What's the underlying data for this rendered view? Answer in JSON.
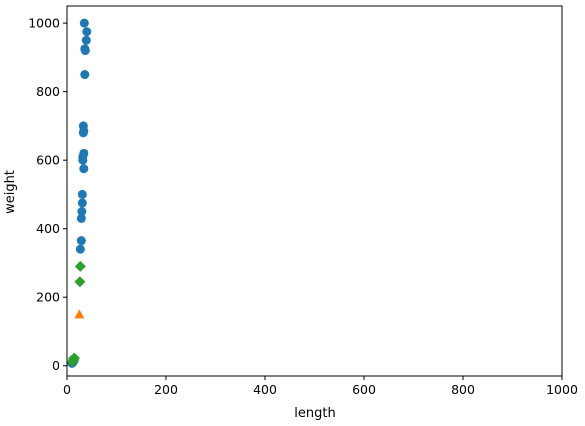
{
  "chart_data": {
    "type": "scatter",
    "title": "",
    "xlabel": "length",
    "ylabel": "weight",
    "xlim": [
      0,
      1000
    ],
    "ylim": [
      -30,
      1050
    ],
    "xticks": [
      0,
      200,
      400,
      600,
      800,
      1000
    ],
    "yticks": [
      0,
      200,
      400,
      600,
      800,
      1000
    ],
    "xtick_labels": [
      "0",
      "200",
      "400",
      "600",
      "800",
      "1000"
    ],
    "ytick_labels": [
      "0",
      "200",
      "400",
      "600",
      "800",
      "1000"
    ],
    "grid": false,
    "legend": "none",
    "series": [
      {
        "marker": "circle",
        "color": "#1f77b4",
        "points": [
          [
            35,
            1000
          ],
          [
            40,
            975
          ],
          [
            39,
            950
          ],
          [
            36,
            925
          ],
          [
            37,
            920
          ],
          [
            36,
            850
          ],
          [
            33,
            700
          ],
          [
            34,
            685
          ],
          [
            33,
            680
          ],
          [
            34,
            620
          ],
          [
            32,
            610
          ],
          [
            32,
            600
          ],
          [
            34,
            575
          ],
          [
            31,
            500
          ],
          [
            31,
            475
          ],
          [
            30,
            450
          ],
          [
            29,
            430
          ],
          [
            29,
            365
          ],
          [
            27,
            340
          ],
          [
            10,
            7
          ],
          [
            11,
            9
          ],
          [
            11,
            10
          ],
          [
            12,
            10
          ],
          [
            12,
            12
          ],
          [
            13,
            13
          ],
          [
            13,
            14
          ],
          [
            14,
            15
          ],
          [
            15,
            20
          ],
          [
            13,
            19
          ]
        ]
      },
      {
        "marker": "triangle",
        "color": "#ff7f0e",
        "points": [
          [
            25,
            150
          ]
        ]
      },
      {
        "marker": "diamond",
        "color": "#2ca02c",
        "points": [
          [
            27,
            290
          ],
          [
            26,
            245
          ],
          [
            13,
            20
          ],
          [
            15,
            22
          ],
          [
            11,
            12
          ]
        ]
      }
    ]
  }
}
